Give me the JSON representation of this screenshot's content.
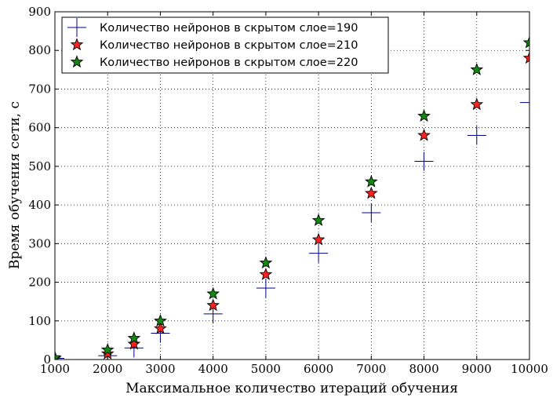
{
  "chart_data": {
    "type": "scatter",
    "title": "",
    "xlabel": "Максимальное количество итераций обучения",
    "ylabel": "Время обучения сети, с",
    "xlim": [
      1000,
      10000
    ],
    "ylim": [
      0,
      900
    ],
    "xticks": [
      1000,
      2000,
      3000,
      4000,
      5000,
      6000,
      7000,
      8000,
      9000,
      10000
    ],
    "yticks": [
      0,
      100,
      200,
      300,
      400,
      500,
      600,
      700,
      800,
      900
    ],
    "grid": true,
    "legend_position": "top-left",
    "series": [
      {
        "name": "Количество нейронов в скрытом слое=190",
        "marker": "plus",
        "color": "#00008b",
        "x": [
          1000,
          2000,
          2500,
          3000,
          4000,
          5000,
          6000,
          7000,
          8000,
          9000,
          10000
        ],
        "y": [
          3,
          10,
          30,
          68,
          118,
          185,
          275,
          380,
          513,
          580,
          665
        ]
      },
      {
        "name": "Количество нейронов в скрытом слое=210",
        "marker": "star",
        "color": "#ff2020",
        "x": [
          1000,
          2000,
          2500,
          3000,
          4000,
          5000,
          6000,
          7000,
          8000,
          9000,
          10000
        ],
        "y": [
          3,
          15,
          40,
          80,
          140,
          220,
          310,
          430,
          580,
          660,
          780
        ]
      },
      {
        "name": "Количество нейронов в скрытом слое=220",
        "marker": "star",
        "color": "#118811",
        "x": [
          1000,
          2000,
          2500,
          3000,
          4000,
          5000,
          6000,
          7000,
          8000,
          9000,
          10000
        ],
        "y": [
          5,
          25,
          55,
          100,
          170,
          250,
          360,
          460,
          630,
          750,
          820
        ]
      }
    ]
  }
}
